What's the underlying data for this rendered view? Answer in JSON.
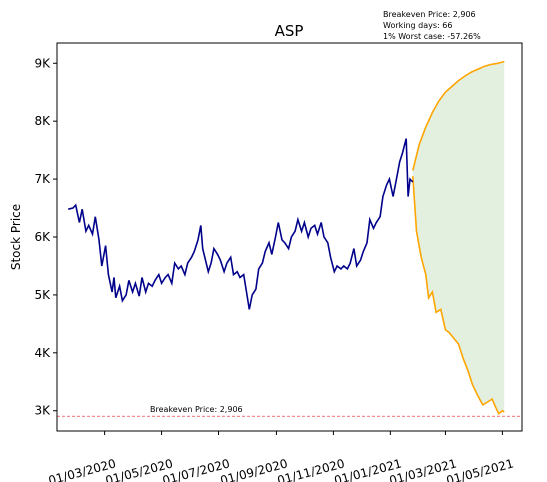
{
  "chart_data": {
    "type": "line",
    "title": "ASP",
    "ylabel": "Stock Price",
    "xlabel": "",
    "ylim": [
      2650,
      9350
    ],
    "xlim": [
      "2020-01-10",
      "2021-05-22"
    ],
    "grid": false,
    "info_box": [
      "Breakeven Price: 2,906",
      "Working days: 66",
      "1% Worst case: -57.26%"
    ],
    "breakeven": {
      "value": 2906,
      "label": "Breakeven Price: 2,906",
      "color": "#e31a1c"
    },
    "x_ticks": [
      {
        "date": "2020-03-01",
        "label": "01/03/2020"
      },
      {
        "date": "2020-05-01",
        "label": "01/05/2020"
      },
      {
        "date": "2020-07-01",
        "label": "01/07/2020"
      },
      {
        "date": "2020-09-01",
        "label": "01/09/2020"
      },
      {
        "date": "2020-11-01",
        "label": "01/11/2020"
      },
      {
        "date": "2021-01-01",
        "label": "01/01/2021"
      },
      {
        "date": "2021-03-01",
        "label": "01/03/2021"
      },
      {
        "date": "2021-05-01",
        "label": "01/05/2021"
      }
    ],
    "y_ticks": [
      {
        "value": 3000,
        "label": "3K"
      },
      {
        "value": 4000,
        "label": "4K"
      },
      {
        "value": 5000,
        "label": "5K"
      },
      {
        "value": 6000,
        "label": "6K"
      },
      {
        "value": 7000,
        "label": "7K"
      },
      {
        "value": 8000,
        "label": "8K"
      },
      {
        "value": 9000,
        "label": "9K"
      }
    ],
    "series": [
      {
        "color": "#00008b",
        "points": [
          [
            "2020-01-22",
            6480
          ],
          [
            "2020-01-27",
            6500
          ],
          [
            "2020-01-30",
            6550
          ],
          [
            "2020-02-03",
            6250
          ],
          [
            "2020-02-06",
            6480
          ],
          [
            "2020-02-10",
            6100
          ],
          [
            "2020-02-13",
            6200
          ],
          [
            "2020-02-17",
            6050
          ],
          [
            "2020-02-20",
            6350
          ],
          [
            "2020-02-24",
            5950
          ],
          [
            "2020-02-27",
            5500
          ],
          [
            "2020-03-02",
            5850
          ],
          [
            "2020-03-05",
            5350
          ],
          [
            "2020-03-09",
            5050
          ],
          [
            "2020-03-11",
            5300
          ],
          [
            "2020-03-13",
            4950
          ],
          [
            "2020-03-17",
            5150
          ],
          [
            "2020-03-20",
            4900
          ],
          [
            "2020-03-24",
            5000
          ],
          [
            "2020-03-27",
            5250
          ],
          [
            "2020-03-31",
            5050
          ],
          [
            "2020-04-03",
            5200
          ],
          [
            "2020-04-07",
            4980
          ],
          [
            "2020-04-10",
            5300
          ],
          [
            "2020-04-14",
            5050
          ],
          [
            "2020-04-17",
            5200
          ],
          [
            "2020-04-21",
            5150
          ],
          [
            "2020-04-24",
            5250
          ],
          [
            "2020-04-28",
            5350
          ],
          [
            "2020-05-01",
            5200
          ],
          [
            "2020-05-05",
            5300
          ],
          [
            "2020-05-08",
            5350
          ],
          [
            "2020-05-12",
            5200
          ],
          [
            "2020-05-15",
            5550
          ],
          [
            "2020-05-19",
            5450
          ],
          [
            "2020-05-22",
            5500
          ],
          [
            "2020-05-26",
            5350
          ],
          [
            "2020-05-29",
            5550
          ],
          [
            "2020-06-02",
            5650
          ],
          [
            "2020-06-05",
            5750
          ],
          [
            "2020-06-09",
            5950
          ],
          [
            "2020-06-12",
            6200
          ],
          [
            "2020-06-14",
            5800
          ],
          [
            "2020-06-17",
            5600
          ],
          [
            "2020-06-20",
            5400
          ],
          [
            "2020-06-23",
            5550
          ],
          [
            "2020-06-26",
            5800
          ],
          [
            "2020-06-30",
            5700
          ],
          [
            "2020-07-03",
            5600
          ],
          [
            "2020-07-07",
            5400
          ],
          [
            "2020-07-10",
            5550
          ],
          [
            "2020-07-14",
            5650
          ],
          [
            "2020-07-17",
            5350
          ],
          [
            "2020-07-21",
            5400
          ],
          [
            "2020-07-24",
            5300
          ],
          [
            "2020-07-28",
            5350
          ],
          [
            "2020-07-31",
            5050
          ],
          [
            "2020-08-03",
            4750
          ],
          [
            "2020-08-06",
            5000
          ],
          [
            "2020-08-10",
            5100
          ],
          [
            "2020-08-13",
            5450
          ],
          [
            "2020-08-17",
            5550
          ],
          [
            "2020-08-20",
            5750
          ],
          [
            "2020-08-24",
            5900
          ],
          [
            "2020-08-27",
            5700
          ],
          [
            "2020-08-31",
            6000
          ],
          [
            "2020-09-03",
            6250
          ],
          [
            "2020-09-07",
            5950
          ],
          [
            "2020-09-10",
            5900
          ],
          [
            "2020-09-14",
            5800
          ],
          [
            "2020-09-17",
            6000
          ],
          [
            "2020-09-21",
            6100
          ],
          [
            "2020-09-24",
            6300
          ],
          [
            "2020-09-28",
            6100
          ],
          [
            "2020-10-01",
            6250
          ],
          [
            "2020-10-05",
            6000
          ],
          [
            "2020-10-08",
            6150
          ],
          [
            "2020-10-12",
            6200
          ],
          [
            "2020-10-15",
            6050
          ],
          [
            "2020-10-19",
            6250
          ],
          [
            "2020-10-22",
            6000
          ],
          [
            "2020-10-26",
            5900
          ],
          [
            "2020-10-29",
            5650
          ],
          [
            "2020-11-02",
            5400
          ],
          [
            "2020-11-05",
            5500
          ],
          [
            "2020-11-09",
            5450
          ],
          [
            "2020-11-12",
            5500
          ],
          [
            "2020-11-16",
            5450
          ],
          [
            "2020-11-19",
            5550
          ],
          [
            "2020-11-23",
            5800
          ],
          [
            "2020-11-26",
            5500
          ],
          [
            "2020-11-30",
            5600
          ],
          [
            "2020-12-03",
            5750
          ],
          [
            "2020-12-07",
            5900
          ],
          [
            "2020-12-10",
            6300
          ],
          [
            "2020-12-14",
            6150
          ],
          [
            "2020-12-17",
            6250
          ],
          [
            "2020-12-21",
            6350
          ],
          [
            "2020-12-24",
            6700
          ],
          [
            "2020-12-28",
            6900
          ],
          [
            "2020-12-31",
            7000
          ],
          [
            "2021-01-04",
            6700
          ],
          [
            "2021-01-07",
            6950
          ],
          [
            "2021-01-11",
            7300
          ],
          [
            "2021-01-14",
            7450
          ],
          [
            "2021-01-18",
            7700
          ],
          [
            "2021-01-20",
            6700
          ],
          [
            "2021-01-22",
            7000
          ],
          [
            "2021-01-25",
            6950
          ]
        ]
      },
      {
        "color": "#ffa500",
        "band_color": "#e3f0e0",
        "upper": [
          [
            "2021-01-25",
            7150
          ],
          [
            "2021-02-01",
            7600
          ],
          [
            "2021-02-08",
            7900
          ],
          [
            "2021-02-15",
            8150
          ],
          [
            "2021-02-22",
            8350
          ],
          [
            "2021-03-01",
            8500
          ],
          [
            "2021-03-08",
            8600
          ],
          [
            "2021-03-15",
            8700
          ],
          [
            "2021-03-22",
            8780
          ],
          [
            "2021-03-29",
            8850
          ],
          [
            "2021-04-05",
            8900
          ],
          [
            "2021-04-12",
            8950
          ],
          [
            "2021-04-19",
            8980
          ],
          [
            "2021-04-26",
            9000
          ],
          [
            "2021-05-03",
            9030
          ]
        ],
        "lower": [
          [
            "2021-01-25",
            7050
          ],
          [
            "2021-01-29",
            6100
          ],
          [
            "2021-02-03",
            5650
          ],
          [
            "2021-02-08",
            5350
          ],
          [
            "2021-02-11",
            4950
          ],
          [
            "2021-02-15",
            5050
          ],
          [
            "2021-02-19",
            4700
          ],
          [
            "2021-02-24",
            4750
          ],
          [
            "2021-03-01",
            4400
          ],
          [
            "2021-03-05",
            4350
          ],
          [
            "2021-03-10",
            4250
          ],
          [
            "2021-03-15",
            4150
          ],
          [
            "2021-03-20",
            3900
          ],
          [
            "2021-03-25",
            3700
          ],
          [
            "2021-03-30",
            3450
          ],
          [
            "2021-04-05",
            3250
          ],
          [
            "2021-04-10",
            3100
          ],
          [
            "2021-04-15",
            3150
          ],
          [
            "2021-04-20",
            3200
          ],
          [
            "2021-04-24",
            3050
          ],
          [
            "2021-04-27",
            2950
          ],
          [
            "2021-05-01",
            3000
          ],
          [
            "2021-05-03",
            2980
          ]
        ]
      }
    ]
  }
}
